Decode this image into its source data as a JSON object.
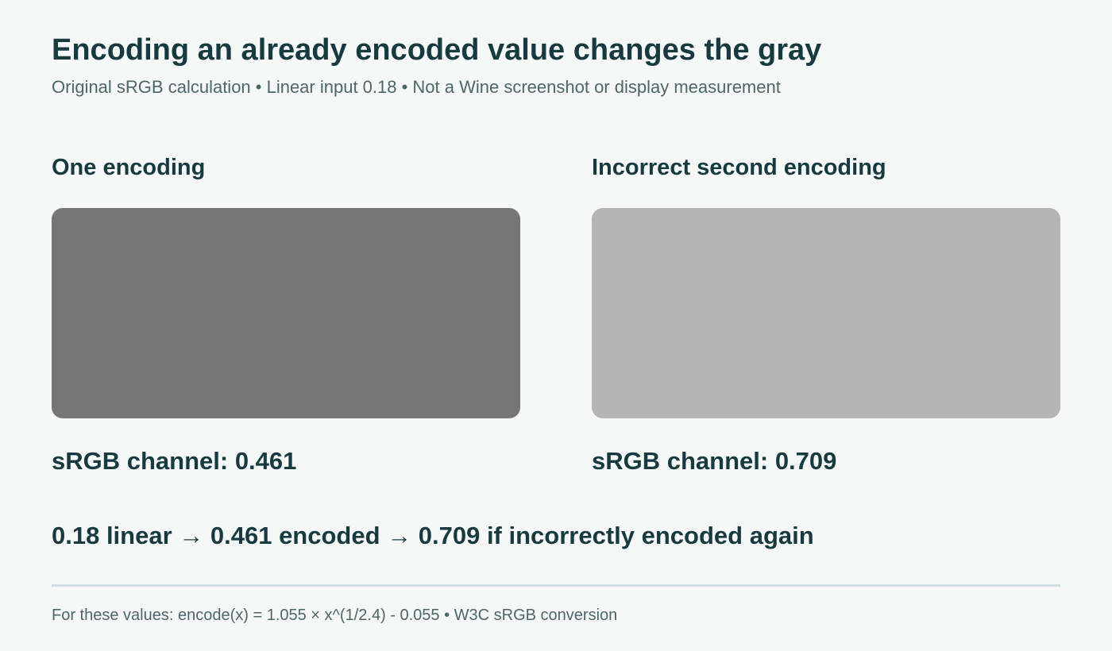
{
  "header": {
    "title": "Encoding an already encoded value changes the gray",
    "subtitle": "Original sRGB calculation • Linear input 0.18 • Not a Wine screenshot or display measurement"
  },
  "panels": [
    {
      "heading": "One encoding",
      "color": "#767676",
      "label": "sRGB channel: 0.461"
    },
    {
      "heading": "Incorrect second encoding",
      "color": "#b5b5b5",
      "label": "sRGB channel: 0.709"
    }
  ],
  "summary": "0.18 linear → 0.461 encoded → 0.709 if incorrectly encoded again",
  "footnote": "For these values: encode(x) = 1.055 × x^(1/2.4) - 0.055 • W3C sRGB conversion"
}
